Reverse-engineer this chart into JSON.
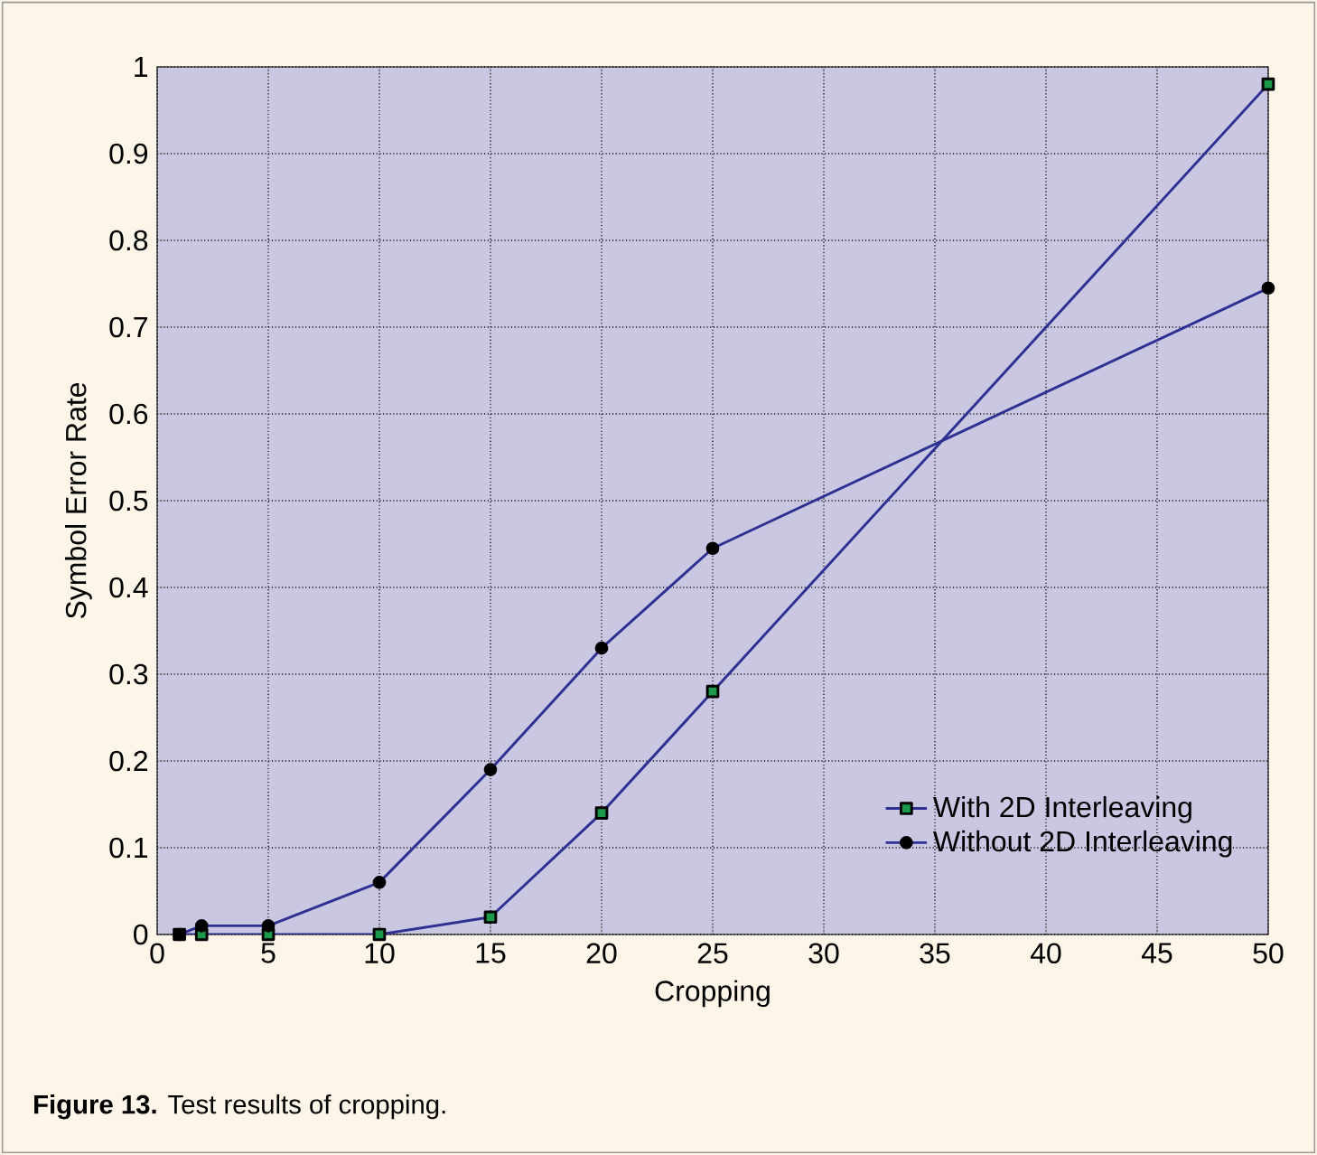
{
  "chart_data": {
    "type": "line",
    "xlabel": "Cropping",
    "ylabel": "Symbol Error Rate",
    "annotations": [
      "**Figure 13.** Test results of cropping."
    ],
    "x": [
      1,
      2,
      5,
      10,
      15,
      20,
      25,
      50
    ],
    "series": [
      {
        "name": "With 2D Interleaving",
        "color": "#2e3192",
        "marker": "square",
        "values": [
          0,
          0,
          0,
          0,
          0.02,
          0.14,
          0.28,
          0.98
        ]
      },
      {
        "name": "Without 2D Interleaving",
        "color": "#2e3192",
        "marker": "circle",
        "values": [
          0,
          0.01,
          0.01,
          0.06,
          0.19,
          0.33,
          0.445,
          0.745
        ]
      }
    ],
    "xlim": [
      0,
      50
    ],
    "xticks": [
      0,
      5,
      10,
      15,
      20,
      25,
      30,
      35,
      40,
      45,
      50
    ],
    "ylim": [
      0,
      1
    ],
    "yticks": [
      0,
      0.1,
      0.2,
      0.3,
      0.4,
      0.5,
      0.6,
      0.7,
      0.8,
      0.9,
      1
    ],
    "grid": true,
    "legend": "bottom right",
    "line_style": "solid"
  }
}
